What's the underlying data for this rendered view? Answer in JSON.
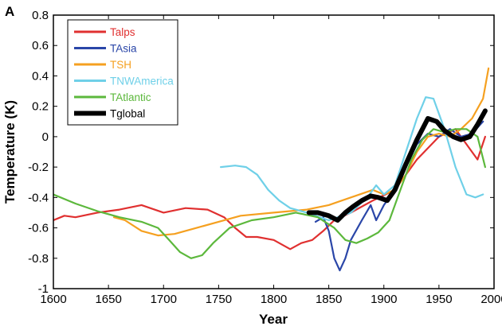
{
  "panel_label": "A",
  "chart_data": {
    "type": "line",
    "title": "",
    "xlabel": "Year",
    "ylabel": "Temperature (K)",
    "xlim": [
      1600,
      2000
    ],
    "ylim": [
      -1,
      0.8
    ],
    "xticks": [
      1600,
      1650,
      1700,
      1750,
      1800,
      1850,
      1900,
      1950,
      2000
    ],
    "yticks": [
      -1,
      -0.8,
      -0.6,
      -0.4,
      -0.2,
      0,
      0.2,
      0.4,
      0.6,
      0.8
    ],
    "ytick_labels": [
      "-1",
      "-0.8",
      "-0.6",
      "-0.4",
      "-0.2",
      "0",
      "0.2",
      "0.4",
      "0.6",
      "0.8"
    ],
    "grid": false,
    "legend_position": "top-left",
    "series": [
      {
        "name": "Talps",
        "color": "#e03030",
        "width": 2.2,
        "x": [
          1600,
          1610,
          1620,
          1640,
          1660,
          1680,
          1700,
          1720,
          1740,
          1755,
          1765,
          1775,
          1785,
          1800,
          1815,
          1825,
          1835,
          1845,
          1855,
          1870,
          1890,
          1910,
          1930,
          1950,
          1965,
          1975,
          1985,
          1992
        ],
        "y": [
          -0.55,
          -0.52,
          -0.53,
          -0.5,
          -0.48,
          -0.45,
          -0.5,
          -0.47,
          -0.48,
          -0.53,
          -0.6,
          -0.66,
          -0.66,
          -0.68,
          -0.74,
          -0.7,
          -0.68,
          -0.62,
          -0.55,
          -0.5,
          -0.42,
          -0.35,
          -0.15,
          0.0,
          0.05,
          -0.05,
          -0.15,
          0.0
        ]
      },
      {
        "name": "TAsia",
        "color": "#2a46a8",
        "width": 2.2,
        "x": [
          1838,
          1845,
          1850,
          1855,
          1860,
          1865,
          1870,
          1880,
          1888,
          1893,
          1900,
          1910,
          1920,
          1930,
          1940,
          1950,
          1960,
          1970,
          1980,
          1990
        ],
        "y": [
          -0.56,
          -0.53,
          -0.62,
          -0.8,
          -0.88,
          -0.8,
          -0.68,
          -0.55,
          -0.45,
          -0.55,
          -0.45,
          -0.35,
          -0.2,
          -0.05,
          0.02,
          0.0,
          0.05,
          0.0,
          0.02,
          0.1
        ]
      },
      {
        "name": "TSH",
        "color": "#f5a020",
        "width": 2.2,
        "x": [
          1655,
          1665,
          1680,
          1695,
          1710,
          1730,
          1750,
          1770,
          1800,
          1830,
          1850,
          1870,
          1890,
          1900,
          1910,
          1920,
          1930,
          1940,
          1950,
          1960,
          1970,
          1980,
          1990,
          1995
        ],
        "y": [
          -0.53,
          -0.55,
          -0.62,
          -0.65,
          -0.64,
          -0.6,
          -0.56,
          -0.52,
          -0.5,
          -0.48,
          -0.45,
          -0.4,
          -0.35,
          -0.38,
          -0.35,
          -0.25,
          -0.1,
          0.0,
          0.02,
          0.0,
          0.05,
          0.12,
          0.25,
          0.45
        ]
      },
      {
        "name": "TNWAmerica",
        "color": "#6fd0e8",
        "width": 2.2,
        "x": [
          1752,
          1765,
          1775,
          1785,
          1795,
          1805,
          1815,
          1830,
          1850,
          1870,
          1885,
          1893,
          1900,
          1910,
          1920,
          1930,
          1938,
          1945,
          1955,
          1965,
          1975,
          1983,
          1990
        ],
        "y": [
          -0.2,
          -0.19,
          -0.2,
          -0.25,
          -0.35,
          -0.42,
          -0.47,
          -0.5,
          -0.55,
          -0.5,
          -0.4,
          -0.32,
          -0.38,
          -0.32,
          -0.1,
          0.12,
          0.26,
          0.25,
          0.05,
          -0.2,
          -0.38,
          -0.4,
          -0.38
        ]
      },
      {
        "name": "TAtlantic",
        "color": "#5cb83c",
        "width": 2.2,
        "x": [
          1600,
          1620,
          1640,
          1660,
          1680,
          1695,
          1705,
          1715,
          1725,
          1735,
          1745,
          1760,
          1780,
          1800,
          1820,
          1840,
          1855,
          1865,
          1875,
          1885,
          1895,
          1905,
          1915,
          1925,
          1935,
          1945,
          1955,
          1965,
          1975,
          1985,
          1992
        ],
        "y": [
          -0.38,
          -0.44,
          -0.49,
          -0.53,
          -0.56,
          -0.6,
          -0.68,
          -0.76,
          -0.8,
          -0.78,
          -0.7,
          -0.6,
          -0.55,
          -0.53,
          -0.5,
          -0.53,
          -0.6,
          -0.68,
          -0.7,
          -0.67,
          -0.63,
          -0.55,
          -0.35,
          -0.15,
          -0.02,
          0.05,
          0.03,
          0.05,
          0.05,
          0.0,
          -0.2
        ]
      },
      {
        "name": "Tglobal",
        "color": "#000000",
        "width": 6,
        "x": [
          1832,
          1840,
          1850,
          1858,
          1865,
          1872,
          1880,
          1888,
          1895,
          1903,
          1910,
          1920,
          1930,
          1940,
          1948,
          1955,
          1963,
          1970,
          1978,
          1985,
          1992
        ],
        "y": [
          -0.5,
          -0.5,
          -0.52,
          -0.55,
          -0.5,
          -0.46,
          -0.42,
          -0.39,
          -0.4,
          -0.42,
          -0.35,
          -0.18,
          -0.02,
          0.12,
          0.1,
          0.04,
          0.0,
          -0.02,
          0.0,
          0.08,
          0.17
        ]
      }
    ]
  }
}
